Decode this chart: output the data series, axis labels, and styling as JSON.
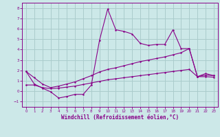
{
  "xlabel": "Windchill (Refroidissement éolien,°C)",
  "background_color": "#cce8e8",
  "grid_color": "#aacccc",
  "line_color": "#880088",
  "xlim": [
    -0.5,
    23.5
  ],
  "ylim": [
    -1.5,
    8.5
  ],
  "xticks": [
    0,
    1,
    2,
    3,
    4,
    5,
    6,
    7,
    8,
    9,
    10,
    11,
    12,
    13,
    14,
    15,
    16,
    17,
    18,
    19,
    20,
    21,
    22,
    23
  ],
  "yticks": [
    -1,
    0,
    1,
    2,
    3,
    4,
    5,
    6,
    7,
    8
  ],
  "line1_x": [
    0,
    1,
    2,
    3,
    4,
    5,
    6,
    7,
    8,
    9,
    10,
    11,
    12,
    13,
    14,
    15,
    16,
    17,
    18,
    19,
    20,
    21,
    22,
    23
  ],
  "line1_y": [
    1.9,
    0.7,
    0.3,
    -0.05,
    -0.65,
    -0.5,
    -0.3,
    -0.3,
    0.6,
    4.9,
    7.9,
    5.9,
    5.75,
    5.5,
    4.6,
    4.4,
    4.5,
    4.5,
    5.9,
    4.1,
    4.1,
    1.4,
    1.7,
    1.5
  ],
  "line2_x": [
    0,
    1,
    2,
    3,
    4,
    5,
    6,
    7,
    8,
    9,
    10,
    11,
    12,
    13,
    14,
    15,
    16,
    17,
    18,
    19,
    20,
    21,
    22,
    23
  ],
  "line2_y": [
    1.9,
    1.3,
    0.7,
    0.35,
    0.5,
    0.7,
    0.9,
    1.2,
    1.5,
    1.85,
    2.1,
    2.25,
    2.45,
    2.65,
    2.85,
    3.0,
    3.15,
    3.3,
    3.5,
    3.7,
    4.1,
    1.4,
    1.55,
    1.5
  ],
  "line3_x": [
    0,
    1,
    2,
    3,
    4,
    5,
    6,
    7,
    8,
    9,
    10,
    11,
    12,
    13,
    14,
    15,
    16,
    17,
    18,
    19,
    20,
    21,
    22,
    23
  ],
  "line3_y": [
    0.6,
    0.6,
    0.35,
    0.25,
    0.3,
    0.4,
    0.5,
    0.65,
    0.8,
    0.95,
    1.1,
    1.2,
    1.3,
    1.4,
    1.5,
    1.6,
    1.7,
    1.8,
    1.9,
    2.0,
    2.1,
    1.4,
    1.4,
    1.35
  ]
}
